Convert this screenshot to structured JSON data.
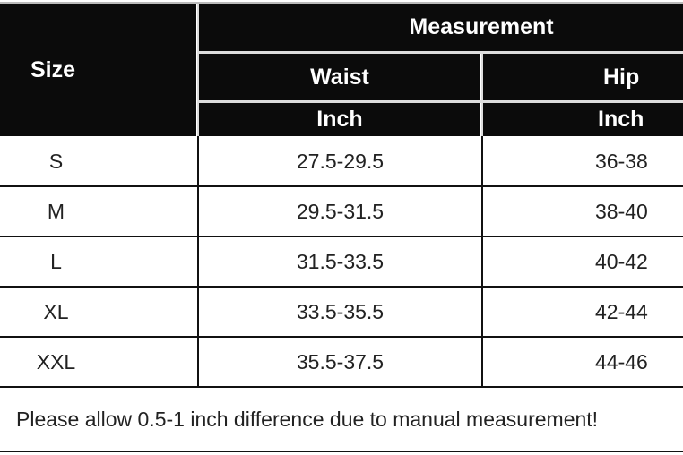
{
  "header": {
    "size": "Size",
    "measurement": "Measurement",
    "columns": [
      {
        "name": "Waist",
        "unit": "Inch"
      },
      {
        "name": "Hip",
        "unit": "Inch"
      }
    ]
  },
  "rows": [
    {
      "size": "S",
      "waist": "27.5-29.5",
      "hip": "36-38"
    },
    {
      "size": "M",
      "waist": "29.5-31.5",
      "hip": "38-40"
    },
    {
      "size": "L",
      "waist": "31.5-33.5",
      "hip": "40-42"
    },
    {
      "size": "XL",
      "waist": "33.5-35.5",
      "hip": "42-44"
    },
    {
      "size": "XXL",
      "waist": "35.5-37.5",
      "hip": "44-46"
    }
  ],
  "note": "Please allow 0.5-1 inch difference due to manual measurement!"
}
